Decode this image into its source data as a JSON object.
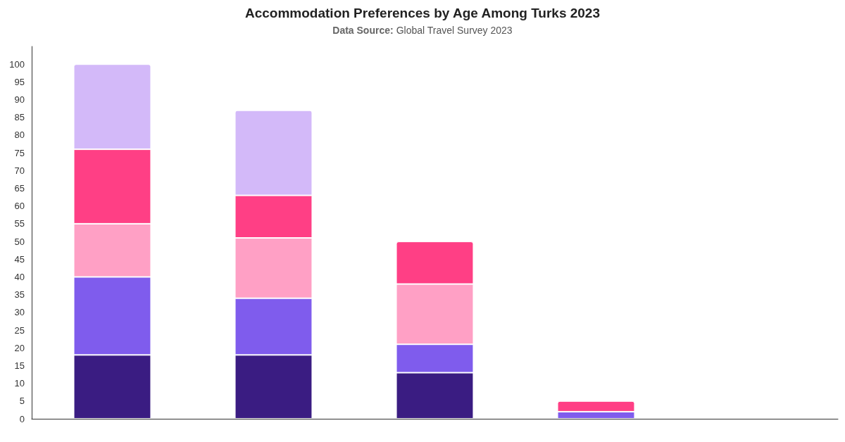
{
  "chart_data": {
    "type": "bar",
    "title": "Accommodation Preferences by Age Among Turks 2023",
    "subtitle": "Data Source: Global Travel Survey 2023",
    "categories": [
      null,
      null,
      null,
      null,
      null
    ],
    "stacked": true,
    "series": [
      {
        "color": "#3a1c82",
        "values": [
          18,
          18,
          13,
          null,
          null
        ]
      },
      {
        "color": "#7f5ced",
        "values": [
          22,
          16,
          8,
          2,
          null
        ]
      },
      {
        "color": "#ffa0c5",
        "values": [
          15,
          17,
          17,
          null,
          null
        ]
      },
      {
        "color": "#ff3f85",
        "values": [
          21,
          12,
          12,
          3,
          null
        ]
      },
      {
        "color": "#d3b9f9",
        "values": [
          24,
          24,
          null,
          null,
          null
        ]
      }
    ],
    "ylim": [
      0,
      105
    ],
    "yticks": [
      0,
      5,
      10,
      15,
      20,
      25,
      30,
      35,
      40,
      45,
      50,
      55,
      60,
      65,
      70,
      75,
      80,
      85,
      90,
      95,
      100
    ],
    "tick_labels": "y",
    "grid": false
  }
}
